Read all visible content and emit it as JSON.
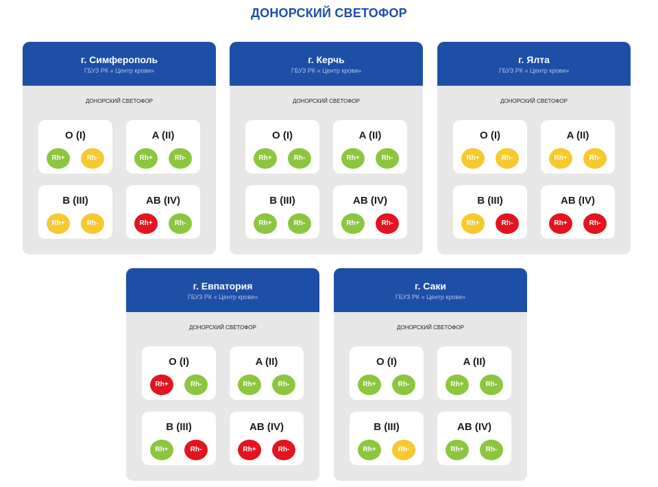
{
  "title": "ДОНОРСКИЙ СВЕТОФОР",
  "colors": {
    "green": "#8cc63f",
    "yellow": "#f7c92f",
    "red": "#e3141f",
    "header": "#1e4fa7"
  },
  "cards": [
    {
      "city": "г. Симферополь",
      "org": "ГБУЗ РК « Центр крови»",
      "subtitle": "ДОНОРСКИЙ СВЕТОФОР",
      "groups": [
        {
          "name": "O (I)",
          "rh_plus": {
            "label": "Rh+",
            "status": "green"
          },
          "rh_minus": {
            "label": "Rh-",
            "status": "yellow"
          }
        },
        {
          "name": "A (II)",
          "rh_plus": {
            "label": "Rh+",
            "status": "green"
          },
          "rh_minus": {
            "label": "Rh-",
            "status": "green"
          }
        },
        {
          "name": "B (III)",
          "rh_plus": {
            "label": "Rh+",
            "status": "yellow"
          },
          "rh_minus": {
            "label": "Rh-",
            "status": "yellow"
          }
        },
        {
          "name": "AB (IV)",
          "rh_plus": {
            "label": "Rh+",
            "status": "red"
          },
          "rh_minus": {
            "label": "Rh-",
            "status": "green"
          }
        }
      ]
    },
    {
      "city": "г. Керчь",
      "org": "ГБУЗ РК « Центр крови»",
      "subtitle": "ДОНОРСКИЙ СВЕТОФОР",
      "groups": [
        {
          "name": "O (I)",
          "rh_plus": {
            "label": "Rh+",
            "status": "green"
          },
          "rh_minus": {
            "label": "Rh-",
            "status": "green"
          }
        },
        {
          "name": "A (II)",
          "rh_plus": {
            "label": "Rh+",
            "status": "green"
          },
          "rh_minus": {
            "label": "Rh-",
            "status": "green"
          }
        },
        {
          "name": "B (III)",
          "rh_plus": {
            "label": "Rh+",
            "status": "green"
          },
          "rh_minus": {
            "label": "Rh-",
            "status": "green"
          }
        },
        {
          "name": "AB (IV)",
          "rh_plus": {
            "label": "Rh+",
            "status": "green"
          },
          "rh_minus": {
            "label": "Rh-",
            "status": "red"
          }
        }
      ]
    },
    {
      "city": "г. Ялта",
      "org": "ГБУЗ РК « Центр крови»",
      "subtitle": "ДОНОРСКИЙ СВЕТОФОР",
      "groups": [
        {
          "name": "O (I)",
          "rh_plus": {
            "label": "Rh+",
            "status": "yellow"
          },
          "rh_minus": {
            "label": "Rh-",
            "status": "yellow"
          }
        },
        {
          "name": "A (II)",
          "rh_plus": {
            "label": "Rh+",
            "status": "yellow"
          },
          "rh_minus": {
            "label": "Rh-",
            "status": "yellow"
          }
        },
        {
          "name": "B (III)",
          "rh_plus": {
            "label": "Rh+",
            "status": "yellow"
          },
          "rh_minus": {
            "label": "Rh-",
            "status": "red"
          }
        },
        {
          "name": "AB (IV)",
          "rh_plus": {
            "label": "Rh+",
            "status": "red"
          },
          "rh_minus": {
            "label": "Rh-",
            "status": "red"
          }
        }
      ]
    },
    {
      "city": "г. Евпатория",
      "org": "ГБУЗ РК « Центр крови»",
      "subtitle": "ДОНОРСКИЙ СВЕТОФОР",
      "groups": [
        {
          "name": "O (I)",
          "rh_plus": {
            "label": "Rh+",
            "status": "red"
          },
          "rh_minus": {
            "label": "Rh-",
            "status": "green"
          }
        },
        {
          "name": "A (II)",
          "rh_plus": {
            "label": "Rh+",
            "status": "green"
          },
          "rh_minus": {
            "label": "Rh-",
            "status": "green"
          }
        },
        {
          "name": "B (III)",
          "rh_plus": {
            "label": "Rh+",
            "status": "green"
          },
          "rh_minus": {
            "label": "Rh-",
            "status": "red"
          }
        },
        {
          "name": "AB (IV)",
          "rh_plus": {
            "label": "Rh+",
            "status": "red"
          },
          "rh_minus": {
            "label": "Rh-",
            "status": "red"
          }
        }
      ]
    },
    {
      "city": "г. Саки",
      "org": "ГБУЗ РК « Центр крови»",
      "subtitle": "ДОНОРСКИЙ СВЕТОФОР",
      "groups": [
        {
          "name": "O (I)",
          "rh_plus": {
            "label": "Rh+",
            "status": "green"
          },
          "rh_minus": {
            "label": "Rh-",
            "status": "green"
          }
        },
        {
          "name": "A (II)",
          "rh_plus": {
            "label": "Rh+",
            "status": "green"
          },
          "rh_minus": {
            "label": "Rh-",
            "status": "green"
          }
        },
        {
          "name": "B (III)",
          "rh_plus": {
            "label": "Rh+",
            "status": "green"
          },
          "rh_minus": {
            "label": "Rh-",
            "status": "yellow"
          }
        },
        {
          "name": "AB (IV)",
          "rh_plus": {
            "label": "Rh+",
            "status": "green"
          },
          "rh_minus": {
            "label": "Rh-",
            "status": "green"
          }
        }
      ]
    }
  ]
}
